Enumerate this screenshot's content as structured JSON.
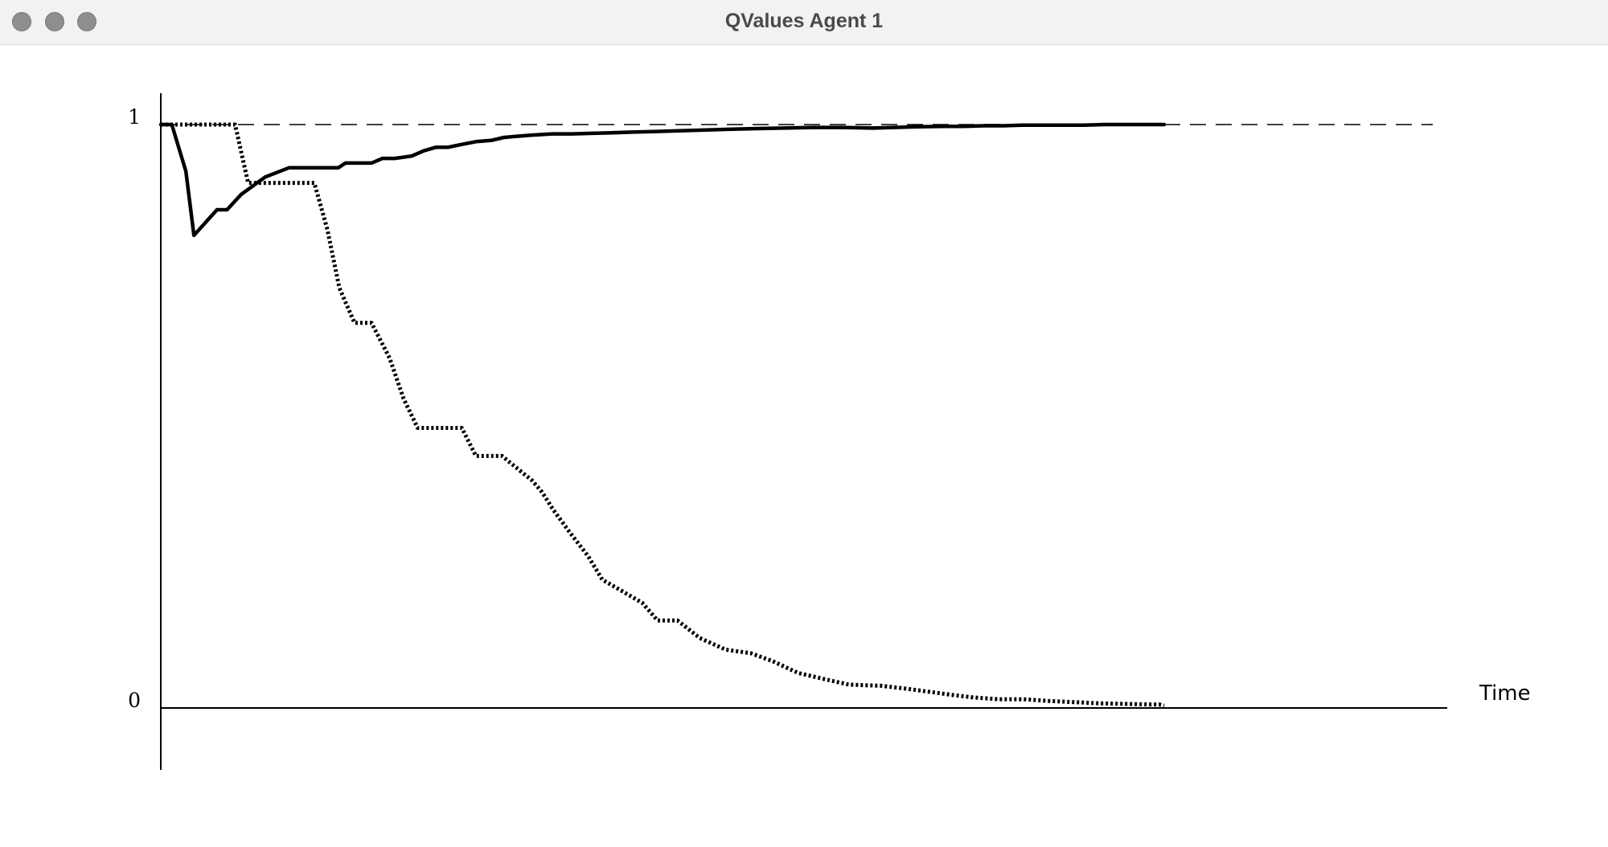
{
  "window": {
    "title": "QValues Agent 1"
  },
  "chart_data": {
    "type": "line",
    "title": "",
    "xlabel": "Time",
    "ylabel": "",
    "y_ticks": [
      "1",
      "0"
    ],
    "ylim": [
      0,
      1
    ],
    "xlim": [
      0,
      100
    ],
    "grid": false,
    "reference_line": {
      "y": 1,
      "style": "dashed"
    },
    "series": [
      {
        "style": "solid",
        "x": [
          0,
          1.1,
          2.5,
          3.3,
          5.6,
          6.6,
          8.0,
          10.4,
          12.8,
          14.5,
          16.3,
          17.7,
          18.4,
          19.5,
          21.0,
          22.1,
          23.3,
          25.0,
          26.2,
          27.4,
          28.6,
          30.0,
          31.5,
          33.0,
          34.2,
          35.6,
          37.0,
          39.0,
          41.0,
          43.0,
          45.0,
          47.0,
          49.0,
          51.0,
          53.0,
          55.0,
          57.0,
          59.0,
          62.0,
          65.0,
          68.0,
          71.0,
          75.0,
          78.0,
          80.0,
          82.0,
          84.0,
          86.0,
          88.0,
          90.0,
          92.0,
          94.0,
          96.0,
          98.0,
          100.0
        ],
        "y": [
          1.0,
          1.0,
          0.92,
          0.81,
          0.854,
          0.854,
          0.88,
          0.91,
          0.926,
          0.926,
          0.926,
          0.926,
          0.934,
          0.934,
          0.934,
          0.942,
          0.942,
          0.946,
          0.955,
          0.961,
          0.961,
          0.966,
          0.971,
          0.973,
          0.978,
          0.98,
          0.982,
          0.984,
          0.984,
          0.985,
          0.986,
          0.987,
          0.988,
          0.989,
          0.99,
          0.991,
          0.992,
          0.993,
          0.994,
          0.995,
          0.995,
          0.994,
          0.996,
          0.997,
          0.997,
          0.998,
          0.998,
          0.999,
          0.999,
          0.999,
          0.999,
          1.0,
          1.0,
          1.0,
          1.0
        ]
      },
      {
        "style": "dotted",
        "x": [
          0,
          3.5,
          7.4,
          8.7,
          15.3,
          16.6,
          17.8,
          19.3,
          21.0,
          22.8,
          24.2,
          25.6,
          27.2,
          30.0,
          31.4,
          32.6,
          34.0,
          37.0,
          38.0,
          39.1,
          40.8,
          42.6,
          44.0,
          46.0,
          48.0,
          49.5,
          51.5,
          53.7,
          56.3,
          58.8,
          61.0,
          63.5,
          66.0,
          68.6,
          71.8,
          74.3,
          76.9,
          79.0,
          81.0,
          83.5,
          86.0,
          88.5,
          91.0,
          93.5,
          96.0,
          98.5,
          99.5,
          100.0
        ],
        "y": [
          1.0,
          1.0,
          1.0,
          0.9,
          0.9,
          0.82,
          0.72,
          0.66,
          0.66,
          0.6,
          0.53,
          0.48,
          0.48,
          0.48,
          0.432,
          0.432,
          0.432,
          0.39,
          0.37,
          0.34,
          0.3,
          0.26,
          0.22,
          0.2,
          0.18,
          0.15,
          0.15,
          0.12,
          0.1,
          0.094,
          0.08,
          0.06,
          0.05,
          0.04,
          0.038,
          0.033,
          0.027,
          0.022,
          0.018,
          0.015,
          0.015,
          0.012,
          0.01,
          0.008,
          0.007,
          0.006,
          0.006,
          0.004
        ]
      }
    ]
  }
}
